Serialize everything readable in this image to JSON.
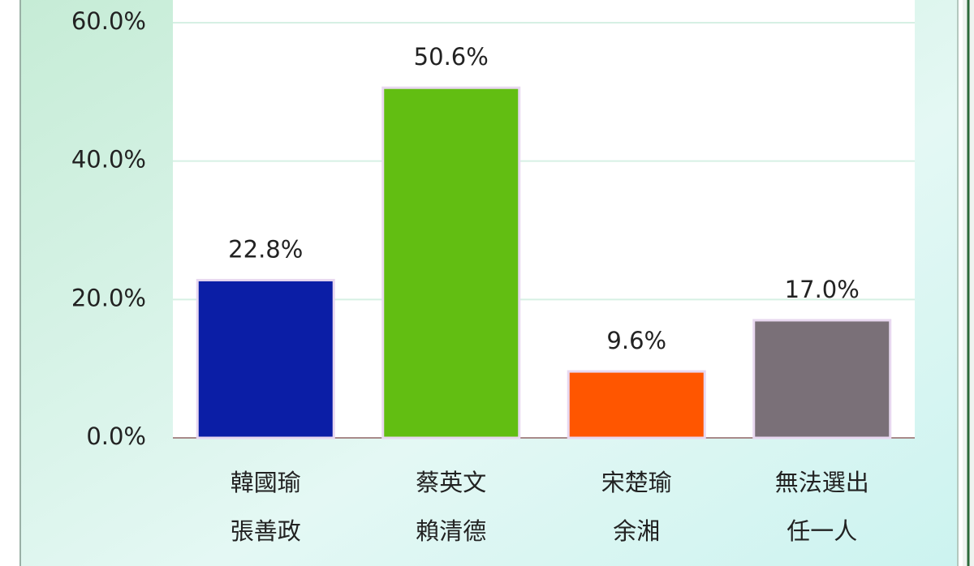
{
  "chart_data": {
    "type": "bar",
    "categories": [
      [
        "韓國瑜",
        "張善政"
      ],
      [
        "蔡英文",
        "賴清德"
      ],
      [
        "宋楚瑜",
        "余湘"
      ],
      [
        "無法選出",
        "任一人"
      ]
    ],
    "values": [
      22.8,
      50.6,
      9.6,
      17.0
    ],
    "value_labels": [
      "22.8%",
      "50.6%",
      "9.6%",
      "17.0%"
    ],
    "colors": [
      "#0b1ea6",
      "#62be12",
      "#ff5600",
      "#7a7078"
    ],
    "ylim": [
      0,
      60
    ],
    "yticks": [
      {
        "value": 0,
        "label": "0.0%"
      },
      {
        "value": 20,
        "label": "20.0%"
      },
      {
        "value": 40,
        "label": "40.0%"
      },
      {
        "value": 60,
        "label": "60.0%"
      }
    ],
    "grid": true
  }
}
